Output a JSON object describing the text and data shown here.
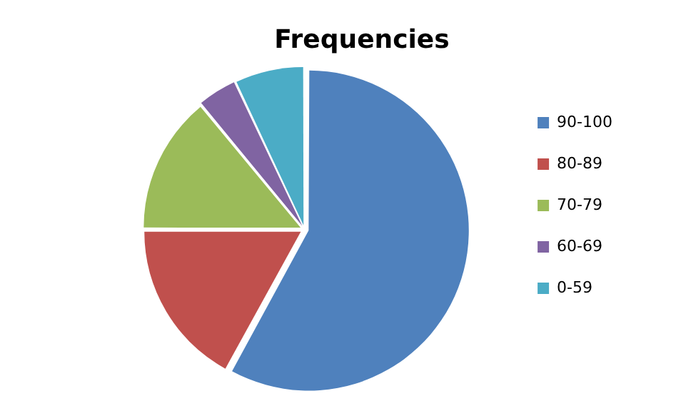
{
  "chart_data": {
    "type": "pie",
    "title": "Frequencies",
    "categories": [
      "90-100",
      "80-89",
      "70-79",
      "60-69",
      "0-59"
    ],
    "values": [
      58,
      17,
      14,
      4,
      7
    ],
    "colors": [
      "#4f81bd",
      "#c0504d",
      "#9bbb59",
      "#8064a2",
      "#4bacc6"
    ],
    "legend": "right"
  }
}
